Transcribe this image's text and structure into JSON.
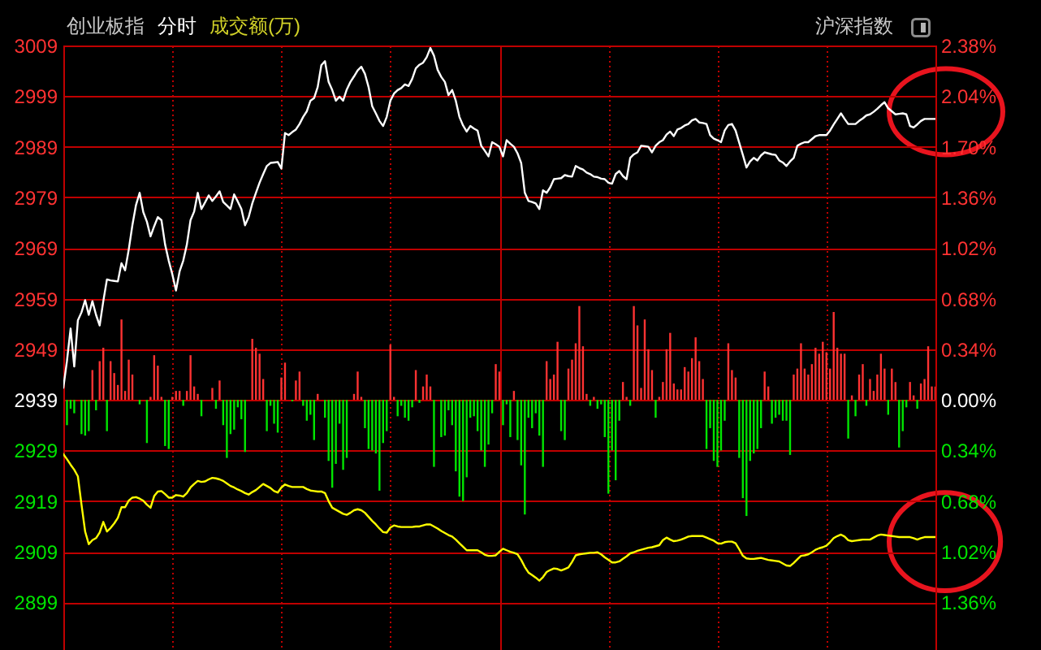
{
  "chart_data": {
    "type": "line",
    "title": "创业板指",
    "subtitle": "分时",
    "annotations": [
      "成交额(万)",
      "沪深指数"
    ],
    "categories": [
      null,
      null,
      null,
      null,
      null,
      null,
      null,
      null,
      null,
      null,
      null,
      null,
      null,
      null,
      null,
      null,
      null,
      null,
      null,
      null,
      null,
      null,
      null,
      null,
      null,
      null,
      null,
      null,
      null,
      null,
      null,
      null,
      null,
      null,
      null,
      null,
      null,
      null,
      null,
      null,
      null,
      null,
      null,
      null,
      null,
      null,
      null,
      null,
      null,
      null,
      null,
      null,
      null,
      null,
      null,
      null,
      null,
      null,
      null,
      null,
      null,
      null,
      null,
      null,
      null,
      null,
      null,
      null,
      null,
      null,
      null,
      null,
      null,
      null,
      null,
      null,
      null,
      null,
      null,
      null,
      null,
      null,
      null,
      null,
      null,
      null,
      null,
      null,
      null,
      null,
      null,
      null,
      null,
      null,
      null,
      null,
      null,
      null,
      null,
      null,
      null,
      null,
      null,
      null,
      null,
      null,
      null,
      null,
      null,
      null,
      null,
      null,
      null,
      null,
      null,
      null,
      null,
      null,
      null,
      null,
      null,
      null,
      null,
      null,
      null,
      null,
      null,
      null,
      null,
      null,
      null,
      null,
      null,
      null,
      null,
      null,
      null,
      null,
      null,
      null,
      null,
      null,
      null,
      null,
      null,
      null,
      null,
      null,
      null,
      null,
      null,
      null,
      null,
      null,
      null,
      null,
      null,
      null,
      null,
      null,
      null,
      null,
      null,
      null,
      null,
      null,
      null,
      null,
      null,
      null,
      null,
      null,
      null,
      null,
      null,
      null,
      null,
      null,
      null,
      null,
      null,
      null,
      null,
      null,
      null,
      null,
      null,
      null,
      null,
      null,
      null,
      null,
      null,
      null,
      null,
      null,
      null,
      null,
      null,
      null,
      null,
      null,
      null,
      null,
      null,
      null,
      null,
      null,
      null,
      null,
      null,
      null,
      null,
      null,
      null,
      null,
      null,
      null,
      null,
      null,
      null,
      null,
      null,
      null,
      null,
      null,
      null,
      null,
      null,
      null,
      null,
      null,
      null,
      null,
      null,
      null,
      null,
      null,
      null,
      null,
      null
    ],
    "ylim": [
      2889.6,
      3009
    ],
    "yticks": [
      2899,
      2909,
      2919,
      2929,
      2939,
      2949,
      2959,
      2969,
      2979,
      2989,
      2999,
      3009
    ],
    "y2lim": [
      -1.68,
      2.38
    ],
    "y2ticks": [
      {
        "value": -1.36,
        "label": "1.36%"
      },
      {
        "value": -1.02,
        "label": "1.02%"
      },
      {
        "value": -0.68,
        "label": "0.68%"
      },
      {
        "value": -0.34,
        "label": "0.34%"
      },
      {
        "value": 0,
        "label": "0.00%"
      },
      {
        "value": 0.34,
        "label": "0.34%"
      },
      {
        "value": 0.68,
        "label": "0.68%"
      },
      {
        "value": 1.02,
        "label": "1.02%"
      },
      {
        "value": 1.36,
        "label": "1.36%"
      },
      {
        "value": 1.7,
        "label": "1.70%"
      },
      {
        "value": 2.04,
        "label": "2.04%"
      },
      {
        "value": 2.38,
        "label": "2.38%"
      }
    ],
    "grid": true,
    "tick_labels": "y",
    "series": [
      {
        "type": "bar",
        "axis": "y2",
        "color": "#ff3232",
        "values": [
          null,
          null,
          null,
          null,
          null,
          null,
          null,
          null,
          0.2,
          null,
          0.26,
          0.35,
          null,
          0.26,
          0.18,
          0.1,
          0.54,
          0.06,
          0.27,
          0.17,
          null,
          null,
          null,
          null,
          0.02,
          0.3,
          0.23,
          0.02,
          null,
          null,
          0.02,
          0.06,
          0.06,
          null,
          0.06,
          0.3,
          0.09,
          0.04,
          null,
          null,
          null,
          0.08,
          null,
          0.13,
          null,
          null,
          null,
          null,
          null,
          null,
          null,
          null,
          0.41,
          0.35,
          0.31,
          0.14,
          null,
          null,
          null,
          null,
          0.15,
          0.25,
          null,
          null,
          0.13,
          0.19,
          null,
          null,
          null,
          null,
          0.04,
          null,
          null,
          null,
          null,
          null,
          null,
          null,
          null,
          null,
          0.04,
          0.19,
          0.02,
          null,
          null,
          null,
          null,
          null,
          null,
          null,
          0.37,
          0.02,
          null,
          null,
          null,
          null,
          null,
          0.2,
          null,
          0.09,
          0.17,
          0.09,
          null,
          null,
          null,
          null,
          null,
          null,
          null,
          null,
          null,
          null,
          null,
          null,
          null,
          null,
          null,
          null,
          null,
          0.24,
          0.19,
          null,
          null,
          null,
          0.06,
          null,
          null,
          null,
          null,
          null,
          null,
          null,
          null,
          0.26,
          0.14,
          0.17,
          0.39,
          null,
          null,
          0.21,
          0.27,
          0.38,
          0.63,
          0.36,
          0.04,
          null,
          0.02,
          null,
          null,
          null,
          null,
          null,
          null,
          null,
          0.12,
          0.02,
          null,
          0.63,
          0.5,
          0.08,
          0.54,
          0.34,
          0.2,
          null,
          0.02,
          0.12,
          0.34,
          0.45,
          0.11,
          0.07,
          0.07,
          0.22,
          0.19,
          0.28,
          0.42,
          0.26,
          0.14,
          null,
          null,
          null,
          null,
          null,
          null,
          0.38,
          0.2,
          0.15,
          null,
          null,
          null,
          null,
          null,
          null,
          null,
          0.19,
          0.09,
          null,
          null,
          null,
          null,
          null,
          null,
          0.17,
          0.21,
          0.38,
          0.21,
          0.17,
          0.24,
          0.35,
          0.31,
          0.39,
          0.32,
          0.21,
          0.59,
          0.35,
          0.31,
          0.31,
          null,
          0.03,
          null,
          0.17,
          0.24,
          null,
          0.14,
          0.06,
          0.17,
          0.31,
          0.21,
          null,
          0.21,
          0.12,
          null,
          null,
          null,
          0.12,
          0.03,
          null,
          0.11,
          0.14,
          0.36,
          0.09,
          0.09
        ]
      },
      {
        "type": "bar",
        "axis": "y2",
        "color": "#00e600",
        "values": [
          null,
          -0.17,
          -0.06,
          -0.09,
          null,
          -0.23,
          -0.24,
          -0.21,
          null,
          -0.07,
          null,
          null,
          -0.21,
          null,
          null,
          null,
          null,
          null,
          null,
          null,
          null,
          -0.03,
          null,
          -0.29,
          null,
          null,
          null,
          null,
          -0.31,
          -0.33,
          null,
          null,
          null,
          -0.04,
          null,
          null,
          null,
          null,
          -0.11,
          null,
          null,
          null,
          -0.06,
          null,
          -0.17,
          -0.39,
          -0.23,
          -0.2,
          -0.05,
          -0.13,
          -0.35,
          null,
          null,
          null,
          null,
          null,
          -0.21,
          -0.04,
          -0.16,
          -0.22,
          null,
          null,
          null,
          -0.01,
          null,
          null,
          -0.04,
          -0.14,
          -0.1,
          -0.27,
          null,
          null,
          -0.12,
          -0.41,
          -0.59,
          -0.43,
          -0.16,
          -0.47,
          -0.39,
          null,
          null,
          null,
          null,
          -0.19,
          -0.33,
          -0.34,
          -0.36,
          -0.61,
          -0.29,
          -0.21,
          null,
          null,
          -0.11,
          -0.04,
          -0.12,
          -0.14,
          -0.05,
          null,
          -0.02,
          null,
          null,
          null,
          -0.45,
          null,
          -0.25,
          -0.24,
          -0.07,
          -0.17,
          -0.48,
          -0.65,
          -0.68,
          -0.52,
          -0.12,
          -0.11,
          -0.21,
          -0.34,
          -0.45,
          -0.3,
          -0.09,
          null,
          null,
          -0.17,
          -0.03,
          -0.25,
          null,
          -0.27,
          -0.44,
          -0.77,
          -0.12,
          -0.19,
          -0.09,
          -0.24,
          -0.45,
          null,
          null,
          null,
          null,
          -0.21,
          -0.27,
          null,
          null,
          null,
          null,
          null,
          null,
          -0.04,
          null,
          -0.06,
          -0.03,
          -0.25,
          -0.63,
          -0.34,
          -0.54,
          -0.14,
          null,
          null,
          -0.04,
          null,
          null,
          null,
          null,
          null,
          null,
          -0.12,
          null,
          null,
          null,
          null,
          null,
          null,
          null,
          null,
          null,
          null,
          null,
          null,
          null,
          -0.33,
          -0.19,
          -0.41,
          -0.45,
          -0.34,
          -0.14,
          null,
          null,
          null,
          -0.39,
          -0.66,
          -0.78,
          -0.41,
          -0.36,
          -0.33,
          -0.19,
          null,
          null,
          -0.16,
          -0.12,
          -0.1,
          -0.14,
          -0.14,
          -0.37,
          null,
          null,
          null,
          null,
          null,
          null,
          null,
          null,
          null,
          null,
          null,
          null,
          null,
          null,
          null,
          -0.26,
          null,
          -0.11,
          null,
          null,
          -0.04,
          null,
          null,
          null,
          null,
          null,
          -0.1,
          null,
          null,
          -0.32,
          -0.21,
          -0.05,
          null,
          null,
          -0.06,
          null,
          null,
          null,
          null,
          null
        ]
      },
      {
        "color": "#ffffff",
        "values": [
          2941.4,
          2946.7,
          2953.1,
          2945.6,
          2954.7,
          2956.3,
          2958.7,
          2955.8,
          2958.5,
          2955.8,
          2953.7,
          2958.5,
          2962.8,
          2962.6,
          2962.5,
          2962.4,
          2966.0,
          2964.6,
          2968.7,
          2973.5,
          2977.5,
          2979.9,
          2976.1,
          2974.2,
          2971.3,
          2973.3,
          2975.1,
          2974.5,
          2969.7,
          2966.5,
          2963.8,
          2960.6,
          2964.4,
          2966.5,
          2969.7,
          2974.5,
          2976.2,
          2979.9,
          2976.7,
          2978.0,
          2979.4,
          2978.3,
          2979.2,
          2980.2,
          2978.1,
          2977.4,
          2976.7,
          2979.6,
          2978.2,
          2976.7,
          2973.5,
          2975.1,
          2977.8,
          2979.9,
          2981.9,
          2983.6,
          2985.2,
          2985.8,
          2985.9,
          2986.0,
          2984.7,
          2991.7,
          2991.3,
          2991.9,
          2992.4,
          2993.5,
          2994.9,
          2996.0,
          2998.1,
          2998.6,
          3000.8,
          3005.1,
          3005.9,
          3001.8,
          3000.2,
          2998.1,
          2998.9,
          2998.1,
          3000.3,
          3001.8,
          3002.9,
          3004.1,
          3004.8,
          3003.4,
          3000.8,
          2997.0,
          2995.6,
          2994.1,
          2993.1,
          2994.9,
          2998.1,
          2999.5,
          3000.2,
          3000.6,
          3001.3,
          3001.0,
          3002.4,
          3004.5,
          3005.2,
          3005.6,
          3006.7,
          3008.5,
          3007.0,
          3004.2,
          3002.8,
          3001.8,
          2999.2,
          3000.2,
          2998.1,
          2994.9,
          2993.2,
          2992.0,
          2993.1,
          2992.6,
          2992.2,
          2989.2,
          2988.2,
          2987.1,
          2989.9,
          2989.5,
          2989.0,
          2987.1,
          2990.3,
          2989.6,
          2989.0,
          2987.7,
          2985.8,
          2979.9,
          2978.3,
          2978.1,
          2977.8,
          2976.7,
          2980.4,
          2979.9,
          2981.0,
          2982.6,
          2982.7,
          2982.8,
          2983.4,
          2983.2,
          2983.1,
          2985.2,
          2984.8,
          2984.5,
          2983.9,
          2983.6,
          2983.1,
          2983.0,
          2982.7,
          2982.6,
          2981.9,
          2981.7,
          2983.6,
          2984.2,
          2983.2,
          2982.6,
          2986.8,
          2987.5,
          2987.9,
          2989.2,
          2989.1,
          2989.0,
          2987.9,
          2989.2,
          2989.9,
          2990.3,
          2991.4,
          2992.0,
          2991.1,
          2992.4,
          2992.7,
          2993.2,
          2993.5,
          2994.2,
          2994.5,
          2993.8,
          2993.7,
          2993.5,
          2991.3,
          2990.6,
          2990.3,
          2989.9,
          2992.2,
          2993.3,
          2993.5,
          2992.2,
          2989.8,
          2987.4,
          2984.9,
          2986.1,
          2986.8,
          2986.3,
          2987.3,
          2987.9,
          2987.7,
          2987.5,
          2987.4,
          2986.3,
          2985.9,
          2985.2,
          2986.1,
          2986.8,
          2989.2,
          2989.6,
          2989.9,
          2989.9,
          2990.5,
          2991.1,
          2991.3,
          2991.3,
          2991.3,
          2992.2,
          2993.4,
          2994.5,
          2995.6,
          2994.5,
          2993.5,
          2993.5,
          2993.5,
          2994.1,
          2994.6,
          2995.2,
          2995.4,
          2995.9,
          2996.5,
          2997.2,
          2997.8,
          2996.6,
          2996.0,
          2995.4,
          2995.5,
          2995.6,
          2995.4,
          2993.1,
          2992.8,
          2993.4,
          2994.1,
          2994.5,
          2994.5,
          2994.5,
          2994.5
        ]
      },
      {
        "color": "#ffff00",
        "values": [
          2928.3,
          2927.3,
          2926.2,
          2925.2,
          2923.9,
          2918.3,
          2913.0,
          2910.5,
          2911.3,
          2911.7,
          2912.8,
          2914.9,
          2913.0,
          2913.7,
          2914.6,
          2915.7,
          2917.8,
          2917.8,
          2919.1,
          2919.7,
          2919.8,
          2919.5,
          2919.1,
          2918.3,
          2917.7,
          2920.0,
          2920.9,
          2921.0,
          2920.4,
          2919.7,
          2919.7,
          2920.2,
          2920.1,
          2919.9,
          2920.6,
          2921.7,
          2922.4,
          2923.0,
          2922.8,
          2922.9,
          2923.3,
          2923.6,
          2923.5,
          2923.3,
          2923.0,
          2922.5,
          2922.0,
          2921.7,
          2921.3,
          2921.0,
          2920.6,
          2920.3,
          2920.8,
          2921.2,
          2921.8,
          2922.4,
          2922.0,
          2921.6,
          2921.0,
          2920.7,
          2921.7,
          2922.3,
          2922.0,
          2921.8,
          2921.8,
          2921.8,
          2921.8,
          2921.4,
          2921.1,
          2921.0,
          2920.9,
          2920.9,
          2920.6,
          2919.0,
          2917.7,
          2917.3,
          2916.9,
          2916.5,
          2916.3,
          2916.7,
          2917.2,
          2917.4,
          2917.2,
          2916.7,
          2915.9,
          2915.1,
          2914.4,
          2913.6,
          2912.9,
          2912.8,
          2913.8,
          2914.2,
          2914.0,
          2913.9,
          2913.9,
          2913.9,
          2913.9,
          2914.0,
          2914.0,
          2914.2,
          2914.4,
          2914.4,
          2914.0,
          2913.6,
          2913.1,
          2912.7,
          2912.3,
          2912.0,
          2911.4,
          2910.7,
          2910.0,
          2909.3,
          2909.3,
          2909.3,
          2909.3,
          2908.9,
          2908.4,
          2908.2,
          2908.2,
          2908.3,
          2909.0,
          2909.6,
          2909.3,
          2909.0,
          2908.8,
          2908.5,
          2907.4,
          2906.0,
          2904.9,
          2904.4,
          2903.9,
          2903.3,
          2904.0,
          2905.0,
          2905.4,
          2905.7,
          2905.6,
          2905.3,
          2905.6,
          2905.9,
          2907.0,
          2908.3,
          2908.5,
          2908.6,
          2908.7,
          2908.8,
          2908.8,
          2908.9,
          2908.5,
          2907.9,
          2907.4,
          2906.9,
          2906.9,
          2907.1,
          2907.6,
          2908.1,
          2908.7,
          2908.9,
          2909.2,
          2909.4,
          2909.6,
          2909.8,
          2909.9,
          2910.1,
          2910.3,
          2911.3,
          2911.8,
          2911.4,
          2911.1,
          2911.2,
          2911.4,
          2911.7,
          2912.0,
          2912.1,
          2912.1,
          2912.1,
          2912.1,
          2911.8,
          2911.5,
          2911.2,
          2910.7,
          2910.6,
          2910.9,
          2911.0,
          2911.0,
          2910.7,
          2909.5,
          2908.2,
          2907.7,
          2907.6,
          2907.6,
          2907.7,
          2907.8,
          2907.6,
          2907.4,
          2907.3,
          2907.2,
          2907.1,
          2906.7,
          2906.3,
          2906.2,
          2906.8,
          2907.5,
          2908.2,
          2908.3,
          2908.5,
          2908.9,
          2909.4,
          2909.7,
          2909.9,
          2910.2,
          2910.9,
          2911.7,
          2912.1,
          2912.4,
          2912.0,
          2911.3,
          2911.1,
          2911.2,
          2911.3,
          2911.4,
          2911.4,
          2911.4,
          2911.8,
          2912.2,
          2912.4,
          2912.3,
          2912.2,
          2912.1,
          2912.0,
          2911.9,
          2911.9,
          2911.9,
          2911.9,
          2911.7,
          2911.4,
          2911.7,
          2911.9,
          2911.9,
          2911.9,
          2911.9
        ]
      }
    ]
  }
}
